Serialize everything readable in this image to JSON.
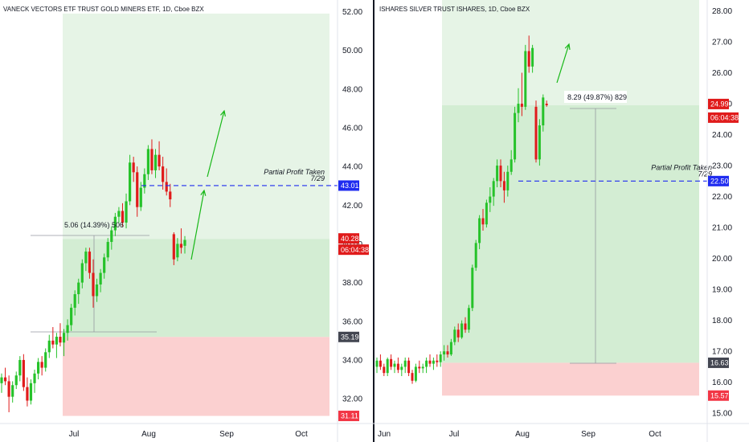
{
  "colors": {
    "up": "#26c22a",
    "down": "#e01b1b",
    "profit_light": "#e6f4e6",
    "profit_zone": "#d3edd3",
    "loss_zone": "#fbd0d0",
    "dash": "#1f2cf0",
    "arrow": "#18b818",
    "separator": "#131722"
  },
  "chart_data": [
    {
      "type": "candlestick",
      "title": "VANECK VECTORS ETF TRUST GOLD MINERS ETF, 1D, Cboe BZX",
      "x_tick_labels": [
        "Jul",
        "Aug",
        "Sep",
        "Oct"
      ],
      "y_tick_labels": [
        "32.00",
        "34.00",
        "36.00",
        "38.00",
        "40.00",
        "42.00",
        "44.00",
        "46.00",
        "48.00",
        "50.00",
        "52.00"
      ],
      "ylim": [
        30.8,
        52.6
      ],
      "price_badges": [
        {
          "label": "43.01",
          "value": 43.01,
          "color": "#1f2cf0"
        },
        {
          "label": "40.28",
          "value": 40.28,
          "color": "#e01b1b"
        },
        {
          "label": "06:04:38",
          "value": 39.7,
          "color": "#e01b1b"
        },
        {
          "label": "35.19",
          "value": 35.19,
          "color": "#434651"
        },
        {
          "label": "31.11",
          "value": 31.11,
          "color": "#f23645"
        }
      ],
      "measure_label": "5.06 (14.39%) 506",
      "annotation": {
        "line1": "Partial Profit Taken",
        "line2": "7/29",
        "level": 43.01
      },
      "position": {
        "entry": 35.19,
        "target": 51.9,
        "stop": 31.11,
        "partial_target": 40.25
      },
      "candles": [
        [
          32.8,
          33.3,
          32.3,
          33.1
        ],
        [
          33.1,
          33.6,
          32.7,
          32.9
        ],
        [
          32.9,
          33.2,
          31.3,
          32.1
        ],
        [
          32.1,
          32.9,
          31.8,
          32.7
        ],
        [
          32.7,
          33.4,
          32.5,
          33.2
        ],
        [
          33.2,
          34.2,
          32.9,
          34.0
        ],
        [
          34.0,
          34.3,
          32.4,
          32.6
        ],
        [
          32.6,
          33.1,
          31.6,
          31.9
        ],
        [
          31.9,
          33.0,
          31.7,
          32.8
        ],
        [
          32.8,
          33.5,
          32.3,
          33.3
        ],
        [
          33.3,
          34.1,
          33.0,
          33.9
        ],
        [
          33.9,
          34.2,
          33.2,
          33.6
        ],
        [
          33.6,
          34.6,
          33.4,
          34.4
        ],
        [
          34.4,
          35.3,
          34.1,
          35.0
        ],
        [
          35.0,
          35.7,
          34.6,
          34.8
        ],
        [
          34.8,
          35.4,
          34.1,
          35.2
        ],
        [
          35.2,
          35.9,
          34.7,
          34.9
        ],
        [
          34.9,
          35.6,
          34.2,
          35.4
        ],
        [
          35.4,
          36.1,
          35.0,
          35.8
        ],
        [
          35.8,
          36.9,
          35.5,
          36.7
        ],
        [
          36.7,
          37.6,
          36.3,
          37.4
        ],
        [
          37.4,
          38.2,
          36.9,
          38.0
        ],
        [
          38.0,
          39.2,
          37.7,
          39.0
        ],
        [
          39.0,
          39.8,
          38.6,
          39.6
        ],
        [
          39.6,
          39.8,
          38.2,
          38.5
        ],
        [
          38.5,
          39.2,
          36.7,
          37.3
        ],
        [
          37.3,
          38.2,
          37.0,
          37.9
        ],
        [
          37.9,
          38.7,
          37.5,
          38.5
        ],
        [
          38.5,
          39.5,
          38.2,
          39.3
        ],
        [
          39.3,
          40.3,
          39.1,
          40.1
        ],
        [
          40.1,
          40.9,
          39.7,
          40.7
        ],
        [
          40.7,
          41.6,
          40.4,
          41.4
        ],
        [
          41.4,
          41.9,
          41.1,
          41.7
        ],
        [
          41.7,
          42.1,
          40.9,
          41.1
        ],
        [
          41.1,
          42.6,
          40.8,
          42.2
        ],
        [
          42.2,
          44.6,
          42.0,
          44.2
        ],
        [
          44.2,
          44.5,
          43.2,
          43.7
        ],
        [
          43.7,
          44.0,
          41.4,
          41.9
        ],
        [
          41.9,
          43.2,
          41.7,
          42.9
        ],
        [
          42.9,
          43.9,
          42.6,
          43.6
        ],
        [
          43.6,
          45.1,
          43.3,
          44.9
        ],
        [
          44.9,
          45.4,
          43.6,
          43.8
        ],
        [
          43.8,
          44.9,
          43.4,
          44.6
        ],
        [
          44.6,
          45.3,
          43.8,
          44.0
        ],
        [
          44.0,
          44.5,
          42.8,
          43.2
        ],
        [
          43.2,
          43.9,
          42.5,
          42.7
        ],
        [
          42.7,
          43.1,
          41.9,
          42.3
        ],
        [
          40.5,
          40.6,
          38.9,
          39.2
        ],
        [
          39.3,
          40.3,
          39.1,
          40.0
        ],
        [
          40.0,
          40.8,
          39.5,
          39.8
        ],
        [
          39.9,
          40.4,
          39.5,
          40.2
        ]
      ]
    },
    {
      "type": "candlestick",
      "title": "ISHARES SILVER TRUST ISHARES, 1D, Cboe BZX",
      "x_tick_labels": [
        "Jun",
        "Jul",
        "Aug",
        "Sep",
        "Oct"
      ],
      "y_tick_labels": [
        "15.00",
        "16.00",
        "17.00",
        "18.00",
        "19.00",
        "20.00",
        "21.00",
        "22.00",
        "23.00",
        "24.00",
        "25.00",
        "26.00",
        "27.00",
        "28.00"
      ],
      "ylim": [
        14.72,
        28.35
      ],
      "price_badges": [
        {
          "label": "24.99",
          "value": 24.99,
          "color": "#e01b1b"
        },
        {
          "label": "06:04:38",
          "value": 24.55,
          "color": "#e01b1b"
        },
        {
          "label": "22.50",
          "value": 22.5,
          "color": "#1f2cf0"
        },
        {
          "label": "16.63",
          "value": 16.63,
          "color": "#434651"
        },
        {
          "label": "15.57",
          "value": 15.57,
          "color": "#f23645"
        }
      ],
      "measure_label": "8.29 (49.87%) 829",
      "annotation": {
        "line1": "Partial Profit Taken",
        "line2": "7/29",
        "level": 22.5
      },
      "position": {
        "entry": 16.63,
        "target": 28.35,
        "stop": 15.57,
        "partial_target": 24.95
      },
      "candles": [
        [
          16.5,
          16.8,
          16.3,
          16.7
        ],
        [
          16.7,
          16.9,
          16.4,
          16.5
        ],
        [
          16.5,
          16.6,
          16.2,
          16.3
        ],
        [
          16.3,
          16.8,
          16.2,
          16.75
        ],
        [
          16.75,
          16.9,
          16.4,
          16.5
        ],
        [
          16.5,
          16.7,
          16.3,
          16.6
        ],
        [
          16.6,
          16.8,
          16.3,
          16.4
        ],
        [
          16.4,
          16.6,
          16.2,
          16.5
        ],
        [
          16.5,
          16.8,
          16.3,
          16.7
        ],
        [
          16.7,
          16.8,
          16.2,
          16.3
        ],
        [
          16.3,
          16.4,
          15.95,
          16.05
        ],
        [
          16.05,
          16.6,
          16.0,
          16.5
        ],
        [
          16.5,
          16.7,
          16.3,
          16.45
        ],
        [
          16.45,
          16.6,
          16.3,
          16.5
        ],
        [
          16.5,
          16.8,
          16.3,
          16.7
        ],
        [
          16.7,
          16.9,
          16.5,
          16.6
        ],
        [
          16.6,
          16.8,
          16.4,
          16.7
        ],
        [
          16.7,
          16.9,
          16.5,
          16.65
        ],
        [
          16.65,
          17.0,
          16.5,
          16.9
        ],
        [
          16.9,
          17.2,
          16.7,
          17.0
        ],
        [
          17.0,
          17.2,
          16.8,
          16.9
        ],
        [
          16.9,
          17.4,
          16.85,
          17.3
        ],
        [
          17.3,
          17.8,
          17.2,
          17.7
        ],
        [
          17.7,
          17.9,
          17.3,
          17.45
        ],
        [
          17.45,
          18.0,
          17.4,
          17.9
        ],
        [
          17.9,
          18.1,
          17.6,
          17.7
        ],
        [
          17.7,
          18.5,
          17.6,
          18.4
        ],
        [
          18.4,
          19.8,
          18.3,
          19.7
        ],
        [
          19.7,
          20.6,
          19.6,
          20.5
        ],
        [
          20.5,
          21.4,
          20.3,
          21.3
        ],
        [
          21.3,
          21.6,
          20.9,
          21.1
        ],
        [
          21.1,
          21.9,
          21.0,
          21.8
        ],
        [
          21.8,
          22.3,
          21.5,
          22.0
        ],
        [
          22.0,
          22.6,
          21.7,
          22.5
        ],
        [
          22.5,
          23.2,
          22.3,
          23.0
        ],
        [
          23.0,
          23.2,
          22.3,
          22.5
        ],
        [
          22.5,
          22.8,
          21.8,
          22.2
        ],
        [
          22.2,
          23.0,
          22.0,
          22.8
        ],
        [
          22.8,
          23.5,
          22.7,
          23.2
        ],
        [
          23.2,
          24.9,
          23.1,
          24.7
        ],
        [
          24.7,
          25.5,
          24.4,
          25.0
        ],
        [
          25.0,
          26.0,
          24.6,
          24.9
        ],
        [
          24.9,
          26.9,
          24.8,
          26.7
        ],
        [
          26.7,
          27.2,
          26.0,
          26.2
        ],
        [
          26.2,
          26.9,
          26.0,
          26.8
        ],
        [
          24.9,
          25.1,
          23.1,
          23.2
        ],
        [
          23.2,
          24.5,
          23.0,
          24.3
        ],
        [
          24.3,
          25.3,
          24.1,
          25.2
        ],
        [
          25.0,
          25.1,
          24.9,
          24.95
        ]
      ]
    }
  ]
}
